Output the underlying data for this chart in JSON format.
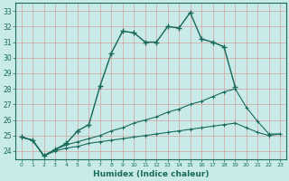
{
  "xlabel": "Humidex (Indice chaleur)",
  "xlim": [
    -0.5,
    23.5
  ],
  "ylim": [
    23.5,
    33.5
  ],
  "xticks": [
    0,
    1,
    2,
    3,
    4,
    5,
    6,
    7,
    8,
    9,
    10,
    11,
    12,
    13,
    14,
    15,
    16,
    17,
    18,
    19,
    20,
    21,
    22,
    23
  ],
  "yticks": [
    24,
    25,
    26,
    27,
    28,
    29,
    30,
    31,
    32,
    33
  ],
  "bg_color": "#c8eae8",
  "line_color": "#1a6b5a",
  "grid_color": "#d4a0a0",
  "line1_x": [
    0,
    1,
    2,
    3,
    4,
    5,
    6,
    7,
    8,
    9,
    10,
    11,
    12,
    13,
    14,
    15,
    16,
    17,
    18,
    19
  ],
  "line1_y": [
    24.9,
    24.7,
    23.7,
    24.1,
    24.5,
    25.3,
    25.7,
    28.2,
    30.3,
    31.7,
    31.6,
    31.0,
    31.0,
    32.0,
    31.9,
    32.9,
    31.2,
    31.0,
    30.7,
    28.1
  ],
  "line2_x": [
    0,
    1,
    2,
    3,
    4,
    5,
    6,
    7,
    8,
    9,
    10,
    11,
    12,
    13,
    14,
    15,
    16,
    17,
    18,
    19
  ],
  "line2_y": [
    24.9,
    24.7,
    23.7,
    24.1,
    24.5,
    25.3,
    25.7,
    28.2,
    30.3,
    31.7,
    31.6,
    31.0,
    31.0,
    32.0,
    31.9,
    32.9,
    31.2,
    31.0,
    30.7,
    28.1
  ],
  "line3_x": [
    0,
    1,
    2,
    3,
    4,
    5,
    6,
    7,
    8,
    9,
    10,
    11,
    12,
    13,
    14,
    15,
    16,
    17,
    18,
    19,
    20,
    21,
    22,
    23
  ],
  "line3_y": [
    24.9,
    24.7,
    23.7,
    24.1,
    24.4,
    24.6,
    24.8,
    25.0,
    25.3,
    25.5,
    25.8,
    26.0,
    26.2,
    26.5,
    26.7,
    27.0,
    27.2,
    27.5,
    27.8,
    28.0,
    26.8,
    25.9,
    25.1,
    25.1
  ],
  "line4_x": [
    0,
    1,
    2,
    3,
    4,
    5,
    6,
    7,
    8,
    9,
    10,
    11,
    12,
    13,
    14,
    15,
    16,
    17,
    18,
    19,
    20,
    21,
    22,
    23
  ],
  "line4_y": [
    24.9,
    24.7,
    23.7,
    24.0,
    24.2,
    24.3,
    24.5,
    24.6,
    24.7,
    24.8,
    24.9,
    25.0,
    25.1,
    25.2,
    25.3,
    25.4,
    25.5,
    25.6,
    25.7,
    25.8,
    25.5,
    25.2,
    25.0,
    25.1
  ]
}
